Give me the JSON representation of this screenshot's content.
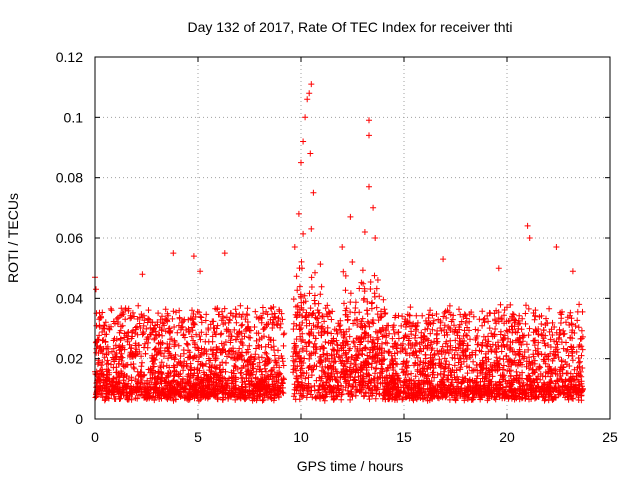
{
  "chart_data": {
    "type": "scatter",
    "title": "Day 132 of 2017, Rate Of TEC Index for receiver thti",
    "xlabel": "GPS time / hours",
    "ylabel": "ROTI / TECUs",
    "xlim": [
      0,
      25
    ],
    "ylim": [
      0,
      0.12
    ],
    "xticks": [
      0,
      5,
      10,
      15,
      20,
      25
    ],
    "xtick_labels": [
      "0",
      "5",
      "10",
      "15",
      "20",
      "25"
    ],
    "yticks": [
      0,
      0.02,
      0.04,
      0.06,
      0.08,
      0.1,
      0.12
    ],
    "ytick_labels": [
      "0",
      "0.02",
      "0.04",
      "0.06",
      "0.08",
      "0.1",
      "0.12"
    ],
    "grid": true,
    "marker": "+",
    "marker_color": "#ff0000",
    "series": [
      {
        "name": "ROTI",
        "data_gap_hours": [
          9.2,
          9.6
        ],
        "x_range_hours": [
          0,
          23.7
        ],
        "baseline_range": [
          0.006,
          0.03
        ],
        "highlight_points": [
          {
            "x": 0.0,
            "y": 0.047
          },
          {
            "x": 0.05,
            "y": 0.043
          },
          {
            "x": 2.3,
            "y": 0.048
          },
          {
            "x": 3.8,
            "y": 0.055
          },
          {
            "x": 4.8,
            "y": 0.054
          },
          {
            "x": 5.1,
            "y": 0.049
          },
          {
            "x": 6.3,
            "y": 0.055
          },
          {
            "x": 9.7,
            "y": 0.057
          },
          {
            "x": 9.9,
            "y": 0.068
          },
          {
            "x": 10.0,
            "y": 0.085
          },
          {
            "x": 10.1,
            "y": 0.092
          },
          {
            "x": 10.2,
            "y": 0.1
          },
          {
            "x": 10.3,
            "y": 0.106
          },
          {
            "x": 10.4,
            "y": 0.108
          },
          {
            "x": 10.5,
            "y": 0.111
          },
          {
            "x": 10.45,
            "y": 0.088
          },
          {
            "x": 10.6,
            "y": 0.075
          },
          {
            "x": 10.5,
            "y": 0.063
          },
          {
            "x": 12.0,
            "y": 0.057
          },
          {
            "x": 12.4,
            "y": 0.067
          },
          {
            "x": 13.1,
            "y": 0.062
          },
          {
            "x": 13.3,
            "y": 0.099
          },
          {
            "x": 13.3,
            "y": 0.094
          },
          {
            "x": 13.3,
            "y": 0.077
          },
          {
            "x": 13.5,
            "y": 0.07
          },
          {
            "x": 13.6,
            "y": 0.06
          },
          {
            "x": 16.9,
            "y": 0.053
          },
          {
            "x": 19.6,
            "y": 0.05
          },
          {
            "x": 21.0,
            "y": 0.064
          },
          {
            "x": 21.1,
            "y": 0.06
          },
          {
            "x": 22.4,
            "y": 0.057
          },
          {
            "x": 23.2,
            "y": 0.049
          },
          {
            "x": 23.5,
            "y": 0.038
          }
        ]
      }
    ]
  }
}
